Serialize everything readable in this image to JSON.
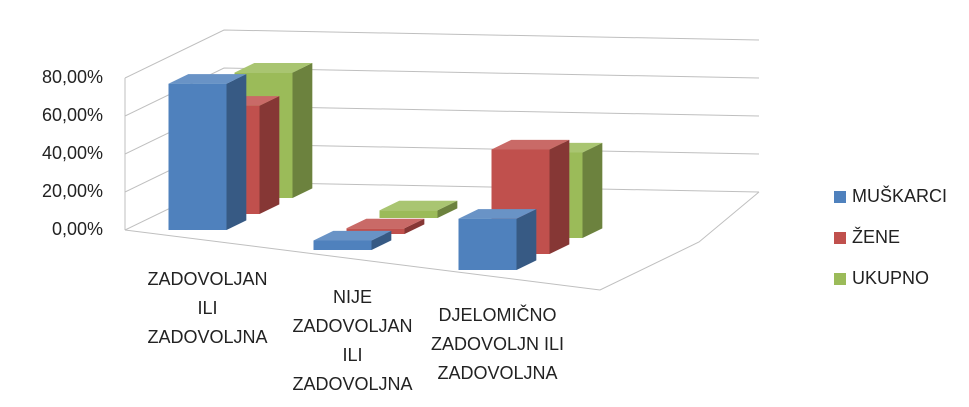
{
  "chart_data": {
    "type": "bar3d",
    "categories": [
      "ZADOVOLJAN ILI ZADOVOLJNA",
      "NIJE ZADOVOLJAN ILI ZADOVOLJNA",
      "DJELOMIČNO ZADOVOLJN ILI ZADOVOLJNA"
    ],
    "series": [
      {
        "name": "MUŠKARCI",
        "color": "#4f81bd",
        "values": [
          77,
          5,
          27
        ]
      },
      {
        "name": "ŽENE",
        "color": "#c0504d",
        "values": [
          57,
          3,
          55
        ]
      },
      {
        "name": "UKUPNO",
        "color": "#9bbb59",
        "values": [
          66,
          4,
          45
        ]
      }
    ],
    "ylim": [
      0,
      80
    ],
    "yticks": [
      {
        "value": 0,
        "label": "0,00%"
      },
      {
        "value": 20,
        "label": "20,00%"
      },
      {
        "value": 40,
        "label": "40,00%"
      },
      {
        "value": 60,
        "label": "60,00%"
      },
      {
        "value": 80,
        "label": "80,00%"
      }
    ],
    "grid": true,
    "legend": "right"
  }
}
